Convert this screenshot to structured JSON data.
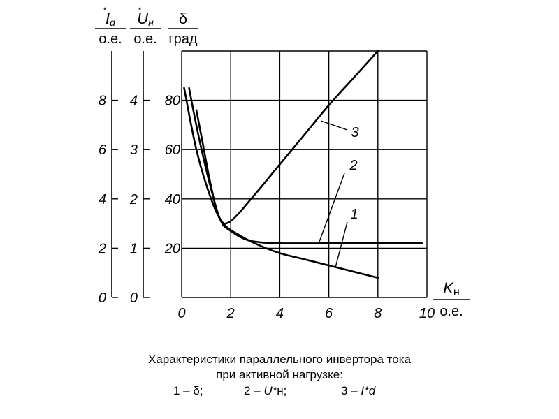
{
  "chart_data": {
    "type": "line",
    "x_axis": {
      "label": "K",
      "label_sub": "н",
      "unit": "о.е.",
      "range": [
        0,
        10
      ],
      "ticks": [
        "0",
        "2",
        "4",
        "6",
        "8",
        "10"
      ]
    },
    "y_axes": [
      {
        "id": "Id",
        "label": "I",
        "label_sup": "*",
        "label_sub": "d",
        "unit": "о.е.",
        "range": [
          0,
          10
        ],
        "ticks": [
          0,
          2,
          4,
          6,
          8
        ],
        "tick_labels": [
          "0",
          "2",
          "4",
          "6",
          "8"
        ]
      },
      {
        "id": "Un",
        "label": "U",
        "label_sup": "*",
        "label_sub": "н",
        "unit": "о.е.",
        "range": [
          0,
          5
        ],
        "ticks": [
          0,
          1,
          2,
          3,
          4
        ],
        "tick_labels": [
          "0",
          "1",
          "2",
          "3",
          "4"
        ]
      },
      {
        "id": "delta",
        "label": "δ",
        "unit": "град",
        "range": [
          0,
          100
        ],
        "ticks": [
          20,
          40,
          60,
          80
        ],
        "tick_labels": [
          "20",
          "40",
          "60",
          "80"
        ]
      }
    ],
    "grid": true,
    "series": [
      {
        "name": "1",
        "axis": "delta",
        "x": [
          0.1,
          0.6,
          1.2,
          1.7,
          2.4,
          3.2,
          4.0,
          5.0,
          6.0,
          7.0,
          8.0
        ],
        "y": [
          85,
          60,
          40,
          30,
          25,
          21,
          18,
          15.5,
          13,
          10.5,
          8
        ]
      },
      {
        "name": "2",
        "axis": "Un",
        "x": [
          0.3,
          0.7,
          1.2,
          1.6,
          2.0,
          2.6,
          3.2,
          4.0,
          6.0,
          8.0,
          9.8
        ],
        "y": [
          4.25,
          3.25,
          2.2,
          1.55,
          1.35,
          1.18,
          1.12,
          1.1,
          1.1,
          1.1,
          1.1
        ]
      },
      {
        "name": "3",
        "axis": "Id",
        "x": [
          0.6,
          0.85,
          1.2,
          1.55,
          2.0,
          3.0,
          4.0,
          5.0,
          6.0,
          7.0,
          8.0
        ],
        "y": [
          7.6,
          6.3,
          4.5,
          3.2,
          3.1,
          4.2,
          5.4,
          6.6,
          7.8,
          8.9,
          10.0
        ]
      }
    ],
    "series_label_positions": [
      "1",
      "2",
      "3"
    ]
  },
  "caption": {
    "line1": "Характеристики параллельного инвертора тока",
    "line2": "при активной нагрузке:",
    "legend": [
      {
        "num": "1 –",
        "sym": "δ",
        "sym_italic": false,
        "sub": "",
        "sep": ";"
      },
      {
        "num": "2 –",
        "sym": "U*",
        "sym_italic": true,
        "sub": "н",
        "sep": ";"
      },
      {
        "num": "3 –",
        "sym": "I*",
        "sym_italic": true,
        "sub": "d",
        "sep": ""
      }
    ]
  }
}
